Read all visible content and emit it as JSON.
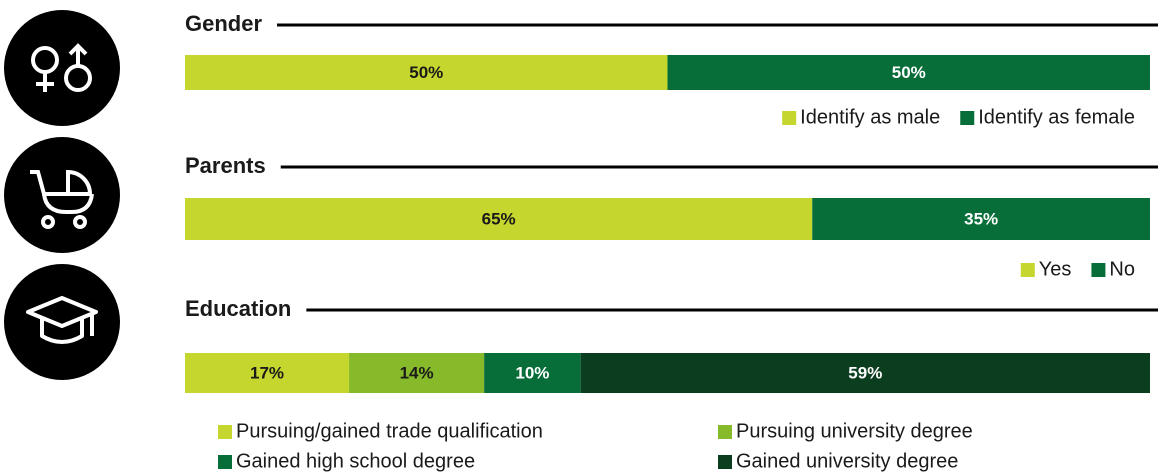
{
  "chart_data": [
    {
      "type": "stacked-bar",
      "orientation": "horizontal",
      "title": "Gender",
      "xlim": [
        0,
        100
      ],
      "series": [
        {
          "name": "Identify as male",
          "color": "#c5d62e",
          "values": [
            50
          ],
          "value_labels": [
            "50%"
          ]
        },
        {
          "name": "Identify as female",
          "color": "#076e3a",
          "values": [
            50
          ],
          "value_labels": [
            "50%"
          ]
        }
      ]
    },
    {
      "type": "stacked-bar",
      "orientation": "horizontal",
      "title": "Parents",
      "xlim": [
        0,
        100
      ],
      "series": [
        {
          "name": "Yes",
          "color": "#c5d62e",
          "values": [
            65
          ],
          "value_labels": [
            "65%"
          ]
        },
        {
          "name": "No",
          "color": "#076e3a",
          "values": [
            35
          ],
          "value_labels": [
            "35%"
          ]
        }
      ]
    },
    {
      "type": "stacked-bar",
      "orientation": "horizontal",
      "title": "Education",
      "xlim": [
        0,
        100
      ],
      "series": [
        {
          "name": "Pursuing/gained trade qualification",
          "color": "#c5d62e",
          "values": [
            17
          ],
          "value_labels": [
            "17%"
          ]
        },
        {
          "name": "Pursuing university degree",
          "color": "#86ba2b",
          "values": [
            14
          ],
          "value_labels": [
            "14%"
          ]
        },
        {
          "name": "Gained high school degree",
          "color": "#076e3a",
          "values": [
            10
          ],
          "value_labels": [
            "10%"
          ]
        },
        {
          "name": "Gained university degree",
          "color": "#0b3d1f",
          "values": [
            59
          ],
          "value_labels": [
            "59%"
          ]
        }
      ]
    }
  ]
}
